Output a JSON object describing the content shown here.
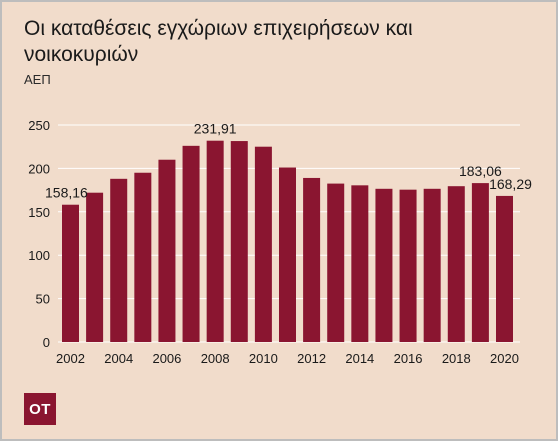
{
  "title": "Οι καταθέσεις εγχώριων επιχειρήσεων και νοικοκυριών",
  "subtitle": "ΑΕΠ",
  "logo_text": "ΟΤ",
  "colors": {
    "background": "#f1dccb",
    "bar": "#8a1530",
    "grid": "#ffffff",
    "text": "#1a1a1a",
    "logo_bg": "#8a1530"
  },
  "chart_data": {
    "type": "bar",
    "title": "Οι καταθέσεις εγχώριων επιχειρήσεων και νοικοκυριών",
    "ylabel": "ΑΕΠ",
    "xlabel": "",
    "ylim": [
      0,
      250
    ],
    "yticks": [
      0,
      50,
      100,
      150,
      200,
      250
    ],
    "xtick_labels": [
      "2002",
      "2004",
      "2006",
      "2008",
      "2010",
      "2012",
      "2014",
      "2016",
      "2018",
      "2020"
    ],
    "grid": "horizontal",
    "categories": [
      2002,
      2003,
      2004,
      2005,
      2006,
      2007,
      2008,
      2009,
      2010,
      2011,
      2012,
      2013,
      2014,
      2015,
      2016,
      2017,
      2018,
      2019,
      2020
    ],
    "values": [
      158.16,
      172,
      188,
      195,
      210,
      226,
      231.91,
      231.5,
      225,
      201,
      189,
      182.5,
      180.5,
      176.5,
      175.5,
      176.5,
      179.5,
      183.06,
      168.29
    ],
    "data_labels": [
      {
        "index": 0,
        "text": "158,16"
      },
      {
        "index": 6,
        "text": "231,91"
      },
      {
        "index": 17,
        "text": "183,06"
      },
      {
        "index": 18,
        "text": "168,29"
      }
    ]
  }
}
